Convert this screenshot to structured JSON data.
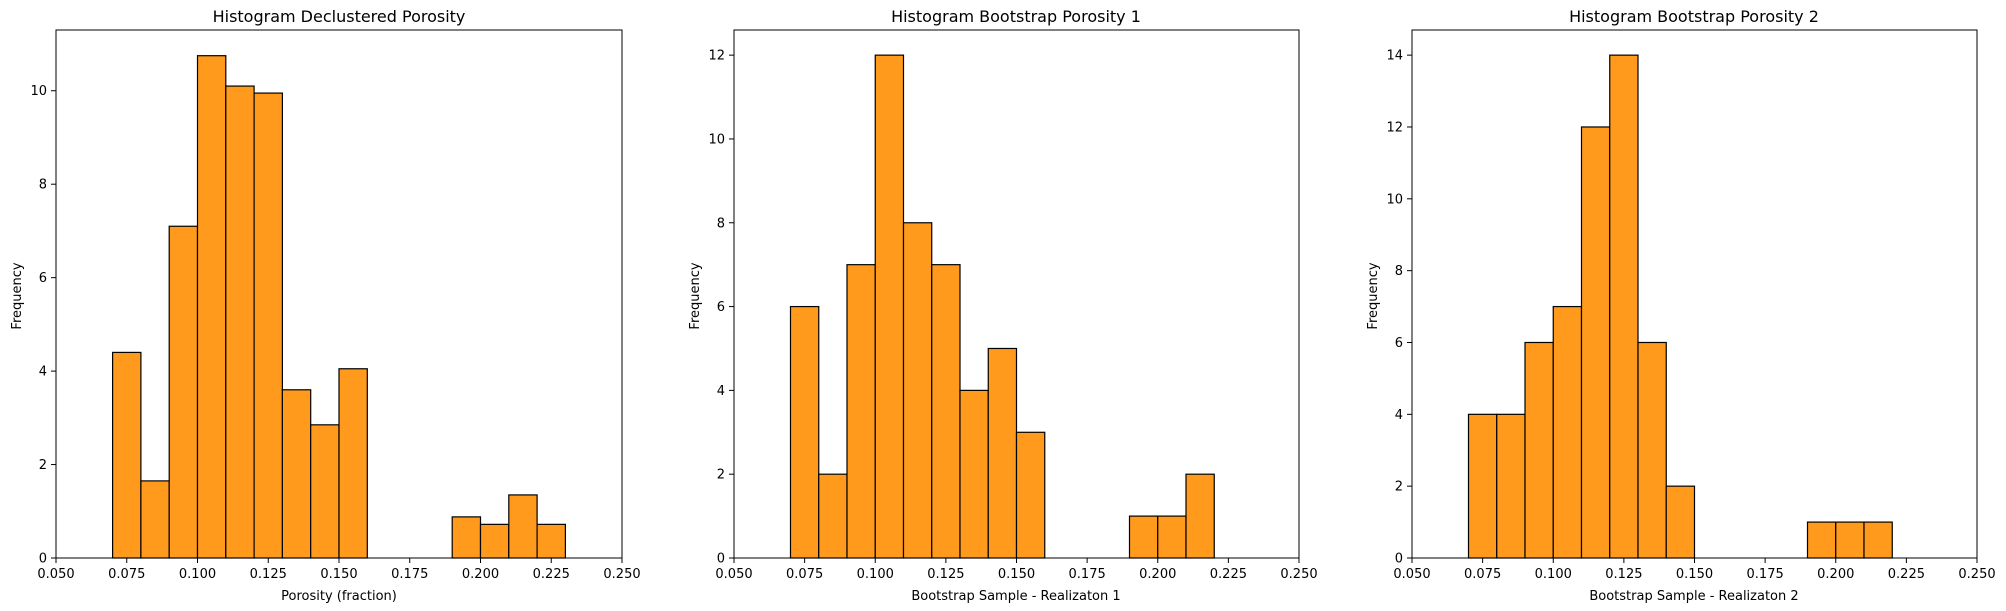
{
  "chart_data": [
    {
      "type": "bar",
      "title": "Histogram Declustered Porosity",
      "xlabel": "Porosity (fraction)",
      "ylabel": "Frequency",
      "xlim": [
        0.05,
        0.25
      ],
      "ylim": [
        0,
        11.3
      ],
      "xticks": [
        "0.050",
        "0.075",
        "0.100",
        "0.125",
        "0.150",
        "0.175",
        "0.200",
        "0.225",
        "0.250"
      ],
      "yticks": [
        "0",
        "2",
        "4",
        "6",
        "8",
        "10"
      ],
      "bins": [
        {
          "x0": 0.07,
          "x1": 0.08,
          "value": 4.4
        },
        {
          "x0": 0.08,
          "x1": 0.09,
          "value": 1.65
        },
        {
          "x0": 0.09,
          "x1": 0.1,
          "value": 7.1
        },
        {
          "x0": 0.1,
          "x1": 0.11,
          "value": 10.75
        },
        {
          "x0": 0.11,
          "x1": 0.12,
          "value": 10.1
        },
        {
          "x0": 0.12,
          "x1": 0.13,
          "value": 9.95
        },
        {
          "x0": 0.13,
          "x1": 0.14,
          "value": 3.6
        },
        {
          "x0": 0.14,
          "x1": 0.15,
          "value": 2.85
        },
        {
          "x0": 0.15,
          "x1": 0.16,
          "value": 4.05
        },
        {
          "x0": 0.19,
          "x1": 0.2,
          "value": 0.88
        },
        {
          "x0": 0.2,
          "x1": 0.21,
          "value": 0.72
        },
        {
          "x0": 0.21,
          "x1": 0.22,
          "value": 1.35
        },
        {
          "x0": 0.22,
          "x1": 0.23,
          "value": 0.72
        }
      ],
      "color": "#ff9a1c",
      "edge_color": "#000000",
      "grid": false
    },
    {
      "type": "bar",
      "title": "Histogram Bootstrap Porosity 1",
      "xlabel": "Bootstrap Sample - Realizaton 1",
      "ylabel": "Frequency",
      "xlim": [
        0.05,
        0.25
      ],
      "ylim": [
        0,
        12.6
      ],
      "xticks": [
        "0.050",
        "0.075",
        "0.100",
        "0.125",
        "0.150",
        "0.175",
        "0.200",
        "0.225",
        "0.250"
      ],
      "yticks": [
        "0",
        "2",
        "4",
        "6",
        "8",
        "10",
        "12"
      ],
      "bins": [
        {
          "x0": 0.07,
          "x1": 0.08,
          "value": 6
        },
        {
          "x0": 0.08,
          "x1": 0.09,
          "value": 2
        },
        {
          "x0": 0.09,
          "x1": 0.1,
          "value": 7
        },
        {
          "x0": 0.1,
          "x1": 0.11,
          "value": 12
        },
        {
          "x0": 0.11,
          "x1": 0.12,
          "value": 8
        },
        {
          "x0": 0.12,
          "x1": 0.13,
          "value": 7
        },
        {
          "x0": 0.13,
          "x1": 0.14,
          "value": 4
        },
        {
          "x0": 0.14,
          "x1": 0.15,
          "value": 5
        },
        {
          "x0": 0.15,
          "x1": 0.16,
          "value": 3
        },
        {
          "x0": 0.19,
          "x1": 0.2,
          "value": 1
        },
        {
          "x0": 0.2,
          "x1": 0.21,
          "value": 1
        },
        {
          "x0": 0.21,
          "x1": 0.22,
          "value": 2
        }
      ],
      "color": "#ff9a1c",
      "edge_color": "#000000",
      "grid": false
    },
    {
      "type": "bar",
      "title": "Histogram Bootstrap Porosity 2",
      "xlabel": "Bootstrap Sample - Realizaton 2",
      "ylabel": "Frequency",
      "xlim": [
        0.05,
        0.25
      ],
      "ylim": [
        0,
        14.7
      ],
      "xticks": [
        "0.050",
        "0.075",
        "0.100",
        "0.125",
        "0.150",
        "0.175",
        "0.200",
        "0.225",
        "0.250"
      ],
      "yticks": [
        "0",
        "2",
        "4",
        "6",
        "8",
        "10",
        "12",
        "14"
      ],
      "bins": [
        {
          "x0": 0.07,
          "x1": 0.08,
          "value": 4
        },
        {
          "x0": 0.08,
          "x1": 0.09,
          "value": 4
        },
        {
          "x0": 0.09,
          "x1": 0.1,
          "value": 6
        },
        {
          "x0": 0.1,
          "x1": 0.11,
          "value": 7
        },
        {
          "x0": 0.11,
          "x1": 0.12,
          "value": 12
        },
        {
          "x0": 0.12,
          "x1": 0.13,
          "value": 14
        },
        {
          "x0": 0.13,
          "x1": 0.14,
          "value": 6
        },
        {
          "x0": 0.14,
          "x1": 0.15,
          "value": 2
        },
        {
          "x0": 0.19,
          "x1": 0.2,
          "value": 1
        },
        {
          "x0": 0.2,
          "x1": 0.21,
          "value": 1
        },
        {
          "x0": 0.21,
          "x1": 0.22,
          "value": 1
        }
      ],
      "color": "#ff9a1c",
      "edge_color": "#000000",
      "grid": false
    }
  ]
}
